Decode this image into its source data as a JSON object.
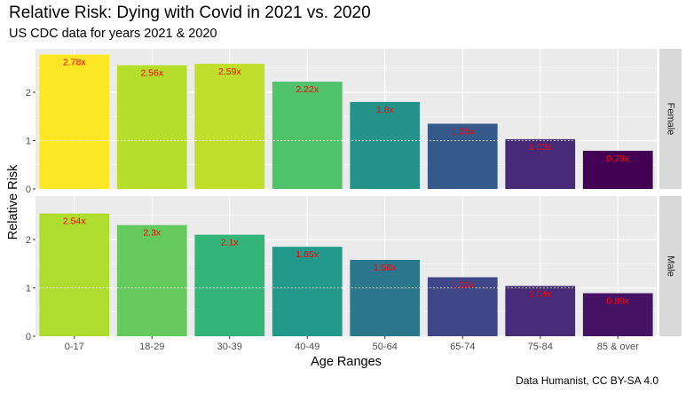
{
  "chart_data": {
    "type": "bar",
    "title": "Relative Risk: Dying with Covid in 2021 vs. 2020",
    "subtitle": "US CDC data for years 2021 & 2020",
    "xlabel": "Age Ranges",
    "ylabel": "Relative Risk",
    "caption": "Data Humanist, CC BY-SA 4.0",
    "categories": [
      "0-17",
      "18-29",
      "30-39",
      "40-49",
      "50-64",
      "65-74",
      "75-84",
      "85 & over"
    ],
    "y_ticks": [
      "0",
      "1",
      "2"
    ],
    "ylim": [
      0,
      2.9
    ],
    "reference_line": 1,
    "grid": true,
    "colormap": "viridis",
    "fill_range": [
      0.79,
      2.78
    ],
    "facets": [
      {
        "strip_label": "Female",
        "values": [
          2.78,
          2.56,
          2.59,
          2.22,
          1.8,
          1.35,
          1.03,
          0.79
        ],
        "labels": [
          "2.78x",
          "2.56x",
          "2.59x",
          "2.22x",
          "1.8x",
          "1.35x",
          "1.03x",
          "0.79x"
        ]
      },
      {
        "strip_label": "Male",
        "values": [
          2.54,
          2.3,
          2.1,
          1.85,
          1.58,
          1.22,
          1.04,
          0.89
        ],
        "labels": [
          "2.54x",
          "2.3x",
          "2.1x",
          "1.85x",
          "1.58x",
          "1.22x",
          "1.04x",
          "0.89x"
        ]
      }
    ],
    "label_color": "#ff0000"
  }
}
